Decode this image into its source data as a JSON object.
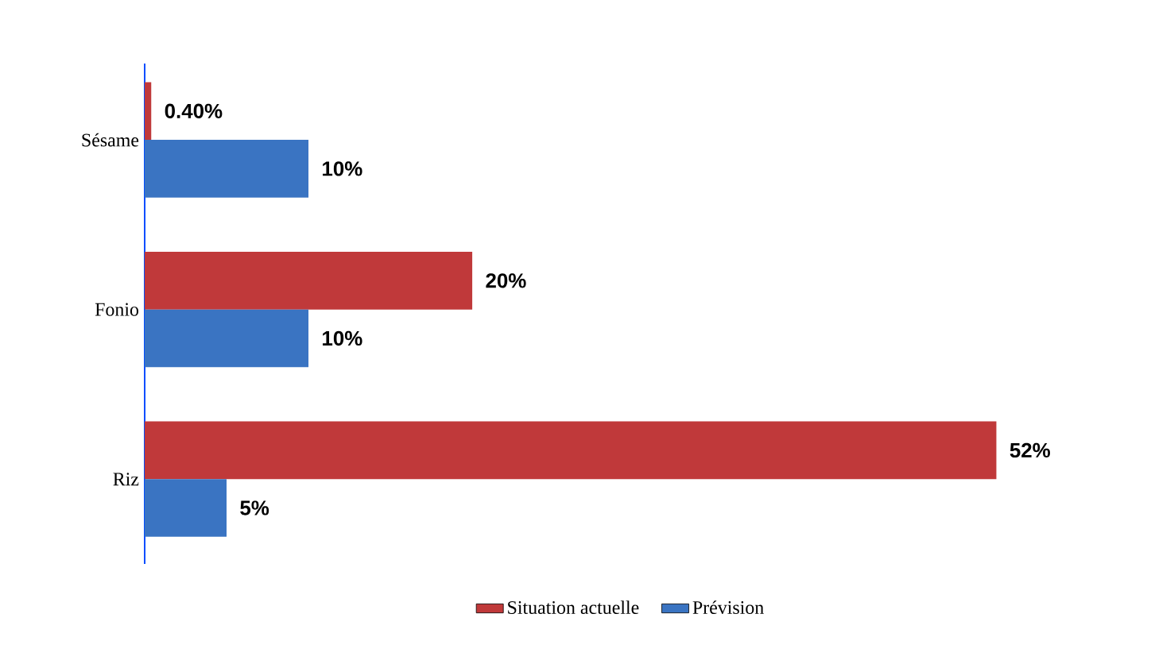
{
  "chart_data": {
    "type": "bar",
    "orientation": "horizontal",
    "categories": [
      "Sésame",
      "Fonio",
      "Riz"
    ],
    "series": [
      {
        "name": "Situation actuelle",
        "color": "#c0393a",
        "values": [
          0.4,
          20,
          52
        ],
        "value_labels": [
          "0.40%",
          "20%",
          "52%"
        ]
      },
      {
        "name": "Prévision",
        "color": "#3a74c2",
        "values": [
          10,
          10,
          5
        ],
        "value_labels": [
          "10%",
          "10%",
          "5%"
        ]
      }
    ],
    "legend": "bottom"
  }
}
